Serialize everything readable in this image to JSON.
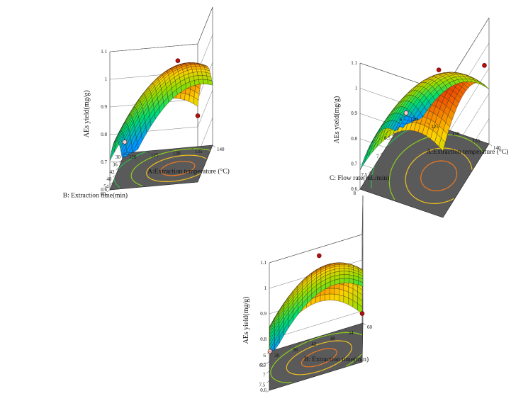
{
  "chart_data": [
    {
      "type": "surface",
      "zlabel": "AEs yield(mg/g)",
      "xlabel": "A:Extraction temperature (°C)",
      "ylabel": "B: Extraction time(min)",
      "xlim": [
        120,
        140
      ],
      "ylim": [
        30,
        60
      ],
      "zlim": [
        0.6,
        1.1
      ],
      "xticks": [
        120,
        125,
        130,
        135,
        140
      ],
      "yticks": [
        30,
        36,
        42,
        48,
        54,
        60
      ],
      "zticks": [
        0.6,
        0.7,
        0.8,
        0.9,
        1,
        1.1
      ],
      "peak": {
        "x": 134,
        "y": 47,
        "z": 0.99
      },
      "design_points": [
        {
          "x": 140,
          "y": 60,
          "z": 0.84
        },
        {
          "x": 134,
          "y": 47,
          "z": 0.99
        },
        {
          "x": 120,
          "y": 30,
          "z": 0.64
        }
      ]
    },
    {
      "type": "surface",
      "zlabel": "AEs yield(mg/g)",
      "xlabel": "A:Extraction temperature (°C)",
      "ylabel": "C: Flow rate(mL/min)",
      "xlim": [
        120,
        140
      ],
      "ylim": [
        6,
        8
      ],
      "zlim": [
        0.6,
        1.1
      ],
      "xticks": [
        120,
        125,
        130,
        135,
        140
      ],
      "yticks": [
        6,
        6.5,
        7,
        7.5,
        8
      ],
      "zticks": [
        0.6,
        0.7,
        0.8,
        0.9,
        1,
        1.1
      ],
      "peak": {
        "x": 134,
        "y": 7.1,
        "z": 1.0
      },
      "design_points": [
        {
          "x": 134,
          "y": 7.1,
          "z": 1.02
        },
        {
          "x": 140,
          "y": 6.2,
          "z": 0.94
        },
        {
          "x": 120,
          "y": 6,
          "z": 0.61
        }
      ]
    },
    {
      "type": "surface",
      "zlabel": "AEs yield(mg/g)",
      "xlabel": "B: Extraction time(min)",
      "ylabel": "C: Flow rate(mL/min)",
      "xlim": [
        30,
        60
      ],
      "ylim": [
        6,
        8
      ],
      "zlim": [
        0.6,
        1.1
      ],
      "xticks": [
        30,
        36,
        42,
        48,
        54,
        60
      ],
      "yticks": [
        6,
        6.5,
        7,
        7.5,
        8
      ],
      "zticks": [
        0.6,
        0.7,
        0.8,
        0.9,
        1,
        1.1
      ],
      "peak": {
        "x": 46,
        "y": 7.1,
        "z": 0.98
      },
      "design_points": [
        {
          "x": 46,
          "y": 7.1,
          "z": 1.0
        },
        {
          "x": 60,
          "y": 8,
          "z": 0.79
        },
        {
          "x": 30,
          "y": 6,
          "z": 0.6
        }
      ]
    }
  ]
}
